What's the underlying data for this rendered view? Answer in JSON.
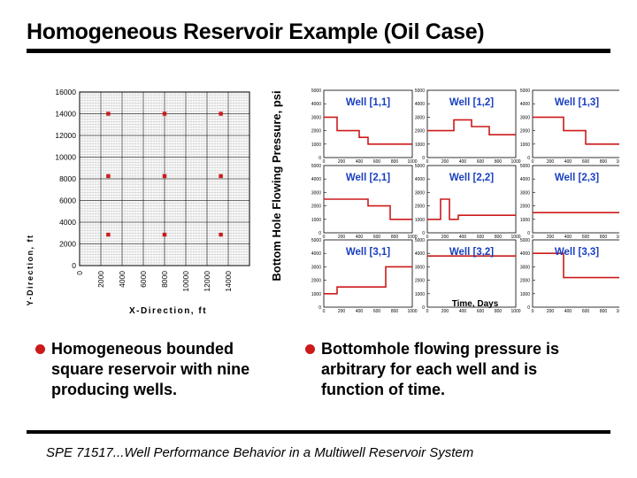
{
  "slide": {
    "title": "Homogeneous Reservoir Example (Oil Case)",
    "bullets": [
      "Homogeneous bounded square reservoir with nine producing wells.",
      "Bottomhole flowing pressure is arbitrary for each well and is function of time."
    ],
    "footer": "SPE 71517...Well Performance Behavior in a Multiwell Reservoir System"
  },
  "colors": {
    "accent": "#cc1a1a",
    "bullet": "#cc1a1a",
    "well_label": "#1a3fbf",
    "panel_border": "#1a3fbf"
  },
  "chart_data": [
    {
      "type": "scatter",
      "title": "",
      "xlabel": "X-Direction, ft",
      "ylabel": "Y-Direction, ft",
      "xlim": [
        0,
        16000
      ],
      "ylim": [
        0,
        16000
      ],
      "x_ticks": [
        "0",
        "2000",
        "4000",
        "6000",
        "8000",
        "10000",
        "12000",
        "14000"
      ],
      "y_ticks": [
        "0",
        "2000",
        "4000",
        "6000",
        "8000",
        "10000",
        "12000",
        "14000",
        "16000"
      ],
      "grid": true,
      "points": [
        {
          "x": 2700,
          "y": 14000
        },
        {
          "x": 8000,
          "y": 14000
        },
        {
          "x": 13300,
          "y": 14000
        },
        {
          "x": 2700,
          "y": 8250
        },
        {
          "x": 8000,
          "y": 8250
        },
        {
          "x": 13300,
          "y": 8250
        },
        {
          "x": 2700,
          "y": 2850
        },
        {
          "x": 8000,
          "y": 2850
        },
        {
          "x": 13300,
          "y": 2850
        }
      ]
    },
    {
      "type": "line",
      "title": "",
      "xlabel": "Time, Days",
      "ylabel": "Bottom Hole Flowing Pressure, psi",
      "x_ticks": [
        "0",
        "200",
        "400",
        "600",
        "800",
        "1000"
      ],
      "y_ticks": [
        "0",
        "1000",
        "2000",
        "3000",
        "4000",
        "5000"
      ],
      "xlim": [
        0,
        1000
      ],
      "ylim": [
        0,
        5000
      ],
      "panels": [
        {
          "name": "Well [1,1]",
          "x": [
            0,
            150,
            150,
            400,
            400,
            500,
            500,
            1000
          ],
          "y": [
            3000,
            3000,
            2000,
            2000,
            1500,
            1500,
            1000,
            1000
          ]
        },
        {
          "name": "Well [1,2]",
          "x": [
            0,
            300,
            300,
            500,
            500,
            700,
            700,
            1000
          ],
          "y": [
            2000,
            2000,
            2800,
            2800,
            2300,
            2300,
            1700,
            1700
          ]
        },
        {
          "name": "Well [1,3]",
          "x": [
            0,
            350,
            350,
            600,
            600,
            1000
          ],
          "y": [
            3000,
            3000,
            2000,
            2000,
            1000,
            1000
          ]
        },
        {
          "name": "Well [2,1]",
          "x": [
            0,
            500,
            500,
            750,
            750,
            1000
          ],
          "y": [
            2500,
            2500,
            2000,
            2000,
            1000,
            1000
          ]
        },
        {
          "name": "Well [2,2]",
          "x": [
            0,
            150,
            150,
            250,
            250,
            350,
            350,
            1000
          ],
          "y": [
            1000,
            1000,
            2500,
            2500,
            1000,
            1000,
            1300,
            1300
          ]
        },
        {
          "name": "Well [2,3]",
          "x": [
            0,
            1000
          ],
          "y": [
            1500,
            1500
          ]
        },
        {
          "name": "Well [3,1]",
          "x": [
            0,
            150,
            150,
            700,
            700,
            1000
          ],
          "y": [
            1000,
            1000,
            1500,
            1500,
            3000,
            3000
          ]
        },
        {
          "name": "Well [3,2]",
          "x": [
            0,
            1000
          ],
          "y": [
            3800,
            3800
          ]
        },
        {
          "name": "Well [3,3]",
          "x": [
            0,
            350,
            350,
            1000
          ],
          "y": [
            4000,
            4000,
            2200,
            2200
          ]
        }
      ]
    }
  ]
}
